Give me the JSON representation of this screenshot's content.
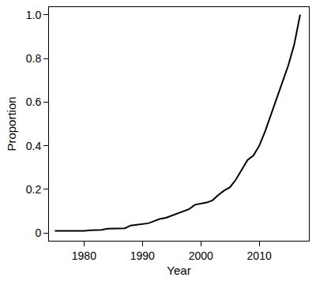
{
  "chart_data": {
    "type": "line",
    "x_label": "Year",
    "y_label": "Proportion",
    "x": [
      1975,
      1976,
      1977,
      1978,
      1979,
      1980,
      1981,
      1982,
      1983,
      1984,
      1985,
      1986,
      1987,
      1988,
      1989,
      1990,
      1991,
      1992,
      1993,
      1994,
      1995,
      1996,
      1997,
      1998,
      1999,
      2000,
      2001,
      2002,
      2003,
      2004,
      2005,
      2006,
      2007,
      2008,
      2009,
      2010,
      2011,
      2012,
      2013,
      2014,
      2015,
      2016,
      2017
    ],
    "values": [
      0.01,
      0.01,
      0.01,
      0.01,
      0.01,
      0.01,
      0.013,
      0.013,
      0.015,
      0.02,
      0.02,
      0.02,
      0.022,
      0.035,
      0.038,
      0.04,
      0.045,
      0.055,
      0.065,
      0.07,
      0.08,
      0.09,
      0.1,
      0.11,
      0.13,
      0.135,
      0.14,
      0.15,
      0.175,
      0.195,
      0.21,
      0.245,
      0.29,
      0.335,
      0.355,
      0.4,
      0.465,
      0.54,
      0.62,
      0.695,
      0.77,
      0.865,
      1.0
    ],
    "color": "#000000",
    "xlim": [
      1974,
      2018.5
    ],
    "ylim": [
      -0.035,
      1.035
    ],
    "xticks": [
      1980,
      1990,
      2000,
      2010
    ],
    "yticks": [
      0,
      0.2,
      0.4,
      0.6,
      0.8,
      {
        "value": 1,
        "label": "1.0"
      }
    ],
    "grid": false
  }
}
